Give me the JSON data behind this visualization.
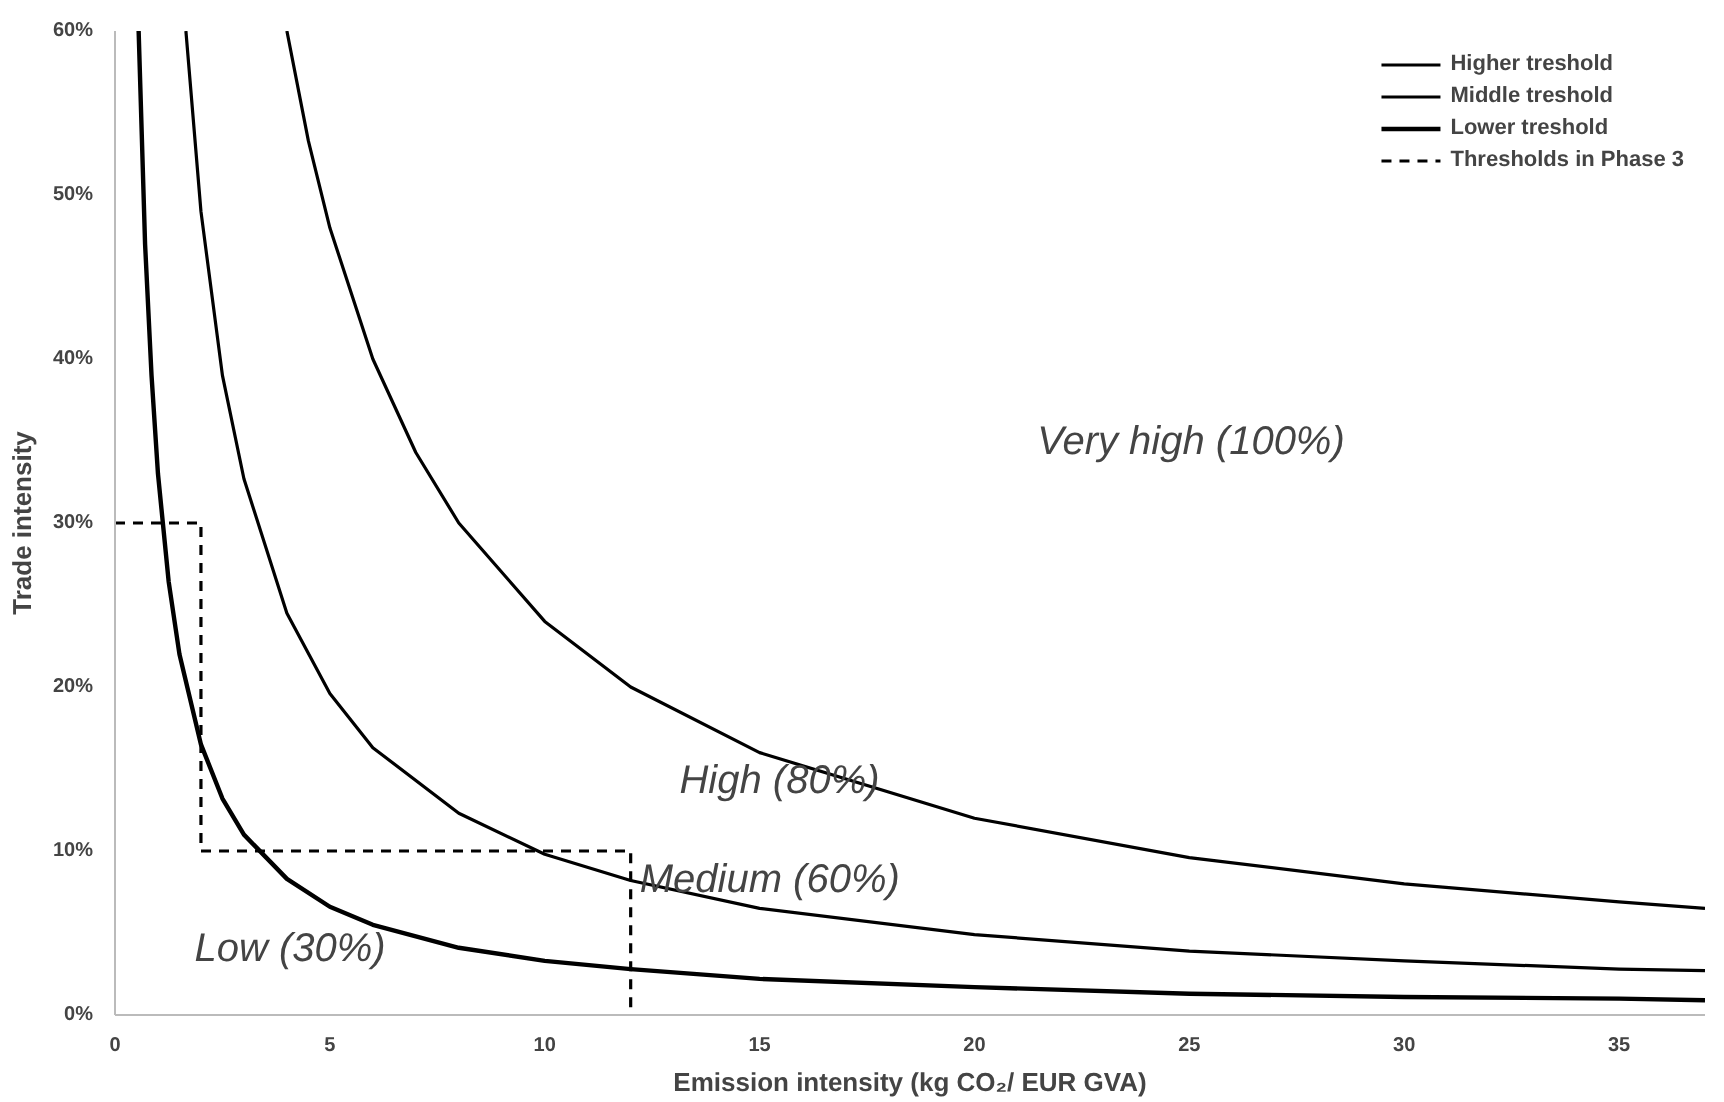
{
  "chart_data": {
    "type": "line",
    "xlabel": "Emission intensity (kg CO₂/ EUR GVA)",
    "ylabel": "Trade intensity",
    "xlim": [
      0,
      37
    ],
    "xticks": [
      0,
      5,
      10,
      15,
      20,
      25,
      30,
      35
    ],
    "ylim": [
      0,
      60
    ],
    "yticks": [
      {
        "value": 0,
        "label": "0%"
      },
      {
        "value": 10,
        "label": "10%"
      },
      {
        "value": 20,
        "label": "20%"
      },
      {
        "value": 30,
        "label": "30%"
      },
      {
        "value": 40,
        "label": "40%"
      },
      {
        "value": 50,
        "label": "50%"
      },
      {
        "value": 60,
        "label": "60%"
      }
    ],
    "grid": false,
    "legend": "top right",
    "series": [
      {
        "name": "Higher treshold",
        "color": "#000000",
        "line_style": "solid",
        "x": [
          4,
          4.5,
          5,
          6,
          7,
          8,
          10,
          12,
          15,
          20,
          25,
          30,
          35,
          37
        ],
        "values": [
          60,
          53.3,
          48,
          40,
          34.3,
          30,
          24,
          20,
          16,
          12,
          9.6,
          8,
          6.9,
          6.5
        ]
      },
      {
        "name": "Middle treshold",
        "color": "#000000",
        "line_style": "solid",
        "x": [
          1.65,
          2,
          2.5,
          3,
          4,
          5,
          6,
          8,
          10,
          12,
          15,
          20,
          25,
          30,
          35,
          37
        ],
        "values": [
          60,
          49,
          39,
          32.7,
          24.5,
          19.6,
          16.3,
          12.3,
          9.8,
          8.2,
          6.5,
          4.9,
          3.9,
          3.3,
          2.8,
          2.7
        ]
      },
      {
        "name": "Lower treshold",
        "color": "#000000",
        "line_style": "solid",
        "x": [
          0.55,
          0.7,
          0.85,
          1,
          1.25,
          1.5,
          2,
          2.5,
          3,
          4,
          5,
          6,
          8,
          10,
          12,
          15,
          20,
          25,
          30,
          35,
          37
        ],
        "values": [
          60,
          47,
          39,
          33,
          26.4,
          22,
          16.5,
          13.2,
          11,
          8.3,
          6.6,
          5.5,
          4.1,
          3.3,
          2.8,
          2.2,
          1.7,
          1.3,
          1.1,
          1.0,
          0.9
        ]
      },
      {
        "name": "Thresholds in Phase 3",
        "color": "#000000",
        "line_style": "dashed",
        "x": [
          0,
          2,
          2,
          12,
          12
        ],
        "values": [
          30,
          30,
          10,
          10,
          0
        ]
      }
    ],
    "annotations": [
      "Very high (100%)",
      "High (80%)",
      "Medium (60%)",
      "Low (30%)"
    ]
  }
}
